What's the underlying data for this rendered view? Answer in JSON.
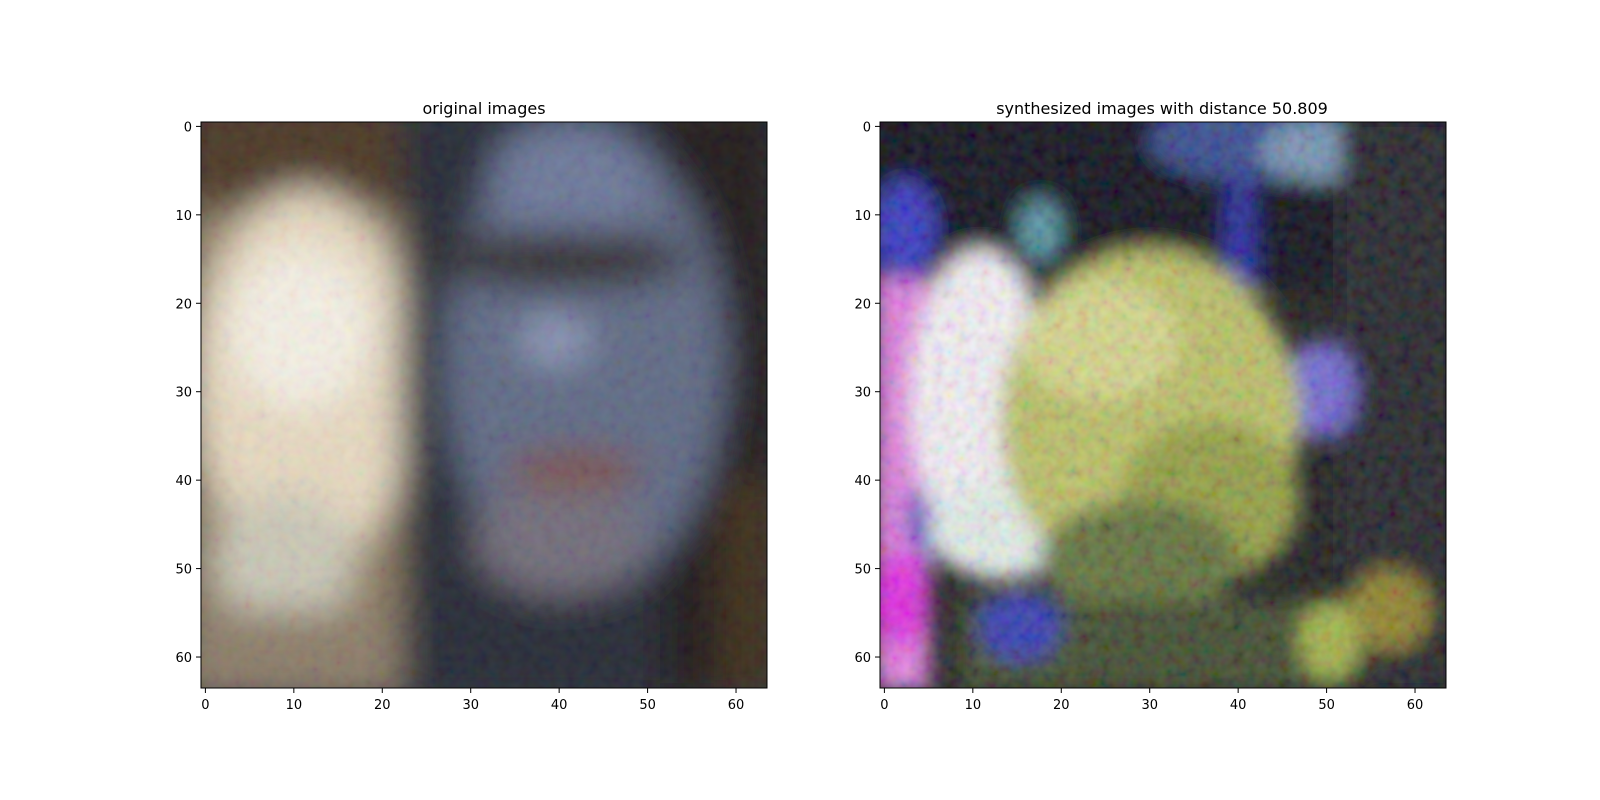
{
  "panels": [
    {
      "title": "original images",
      "x_ticks": [
        "0",
        "10",
        "20",
        "30",
        "40",
        "50",
        "60"
      ],
      "y_ticks": [
        "0",
        "10",
        "20",
        "30",
        "40",
        "50",
        "60"
      ]
    },
    {
      "title": "synthesized images with distance 50.809",
      "x_ticks": [
        "0",
        "10",
        "20",
        "30",
        "40",
        "50",
        "60"
      ],
      "y_ticks": [
        "0",
        "10",
        "20",
        "30",
        "40",
        "50",
        "60"
      ]
    }
  ],
  "axis_range": [
    0,
    64
  ]
}
